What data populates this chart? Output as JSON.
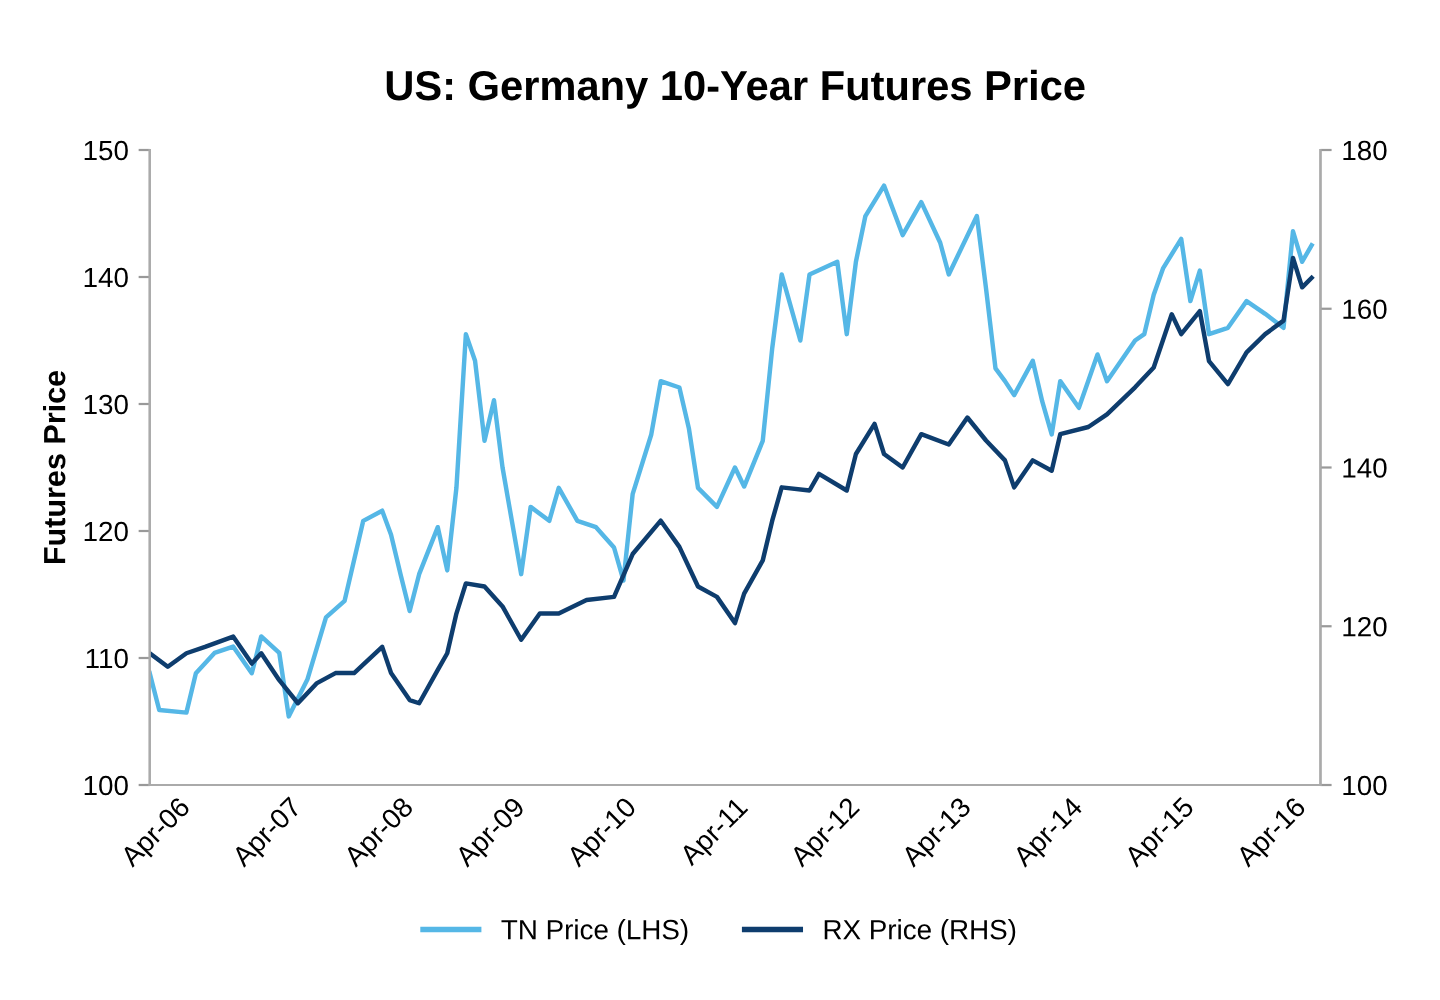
{
  "chart_data": {
    "type": "line",
    "title": "US: Germany 10-Year Futures Price",
    "ylabel": "Futures Price",
    "xlim": [
      "2006-01-01",
      "2016-06-30"
    ],
    "xticks": [
      {
        "value": "2006-04",
        "label": "Apr-06"
      },
      {
        "value": "2007-04",
        "label": "Apr-07"
      },
      {
        "value": "2008-04",
        "label": "Apr-08"
      },
      {
        "value": "2009-04",
        "label": "Apr-09"
      },
      {
        "value": "2010-04",
        "label": "Apr-10"
      },
      {
        "value": "2011-04",
        "label": "Apr-11"
      },
      {
        "value": "2012-04",
        "label": "Apr-12"
      },
      {
        "value": "2013-04",
        "label": "Apr-13"
      },
      {
        "value": "2014-04",
        "label": "Apr-14"
      },
      {
        "value": "2015-04",
        "label": "Apr-15"
      },
      {
        "value": "2016-04",
        "label": "Apr-16"
      }
    ],
    "ylim": [
      100,
      150
    ],
    "yticks": [
      100,
      110,
      120,
      130,
      140,
      150
    ],
    "y2lim": [
      100,
      180
    ],
    "y2ticks": [
      100,
      120,
      140,
      160,
      180
    ],
    "grid": false,
    "legend": "bottom",
    "line_style": "solid",
    "marker": "none",
    "series": [
      {
        "name": "TN Price (LHS)",
        "color": "#55b7e6",
        "axis": "y",
        "x": [
          "2006-01",
          "2006-02",
          "2006-05",
          "2006-06",
          "2006-08",
          "2006-10",
          "2006-12",
          "2007-01",
          "2007-03",
          "2007-04",
          "2007-06",
          "2007-08",
          "2007-10",
          "2007-12",
          "2008-02",
          "2008-03",
          "2008-04",
          "2008-05",
          "2008-06",
          "2008-08",
          "2008-09",
          "2008-10",
          "2008-11",
          "2008-12",
          "2009-01",
          "2009-02",
          "2009-03",
          "2009-05",
          "2009-06",
          "2009-08",
          "2009-09",
          "2009-11",
          "2010-01",
          "2010-03",
          "2010-04",
          "2010-05",
          "2010-07",
          "2010-08",
          "2010-10",
          "2010-11",
          "2010-12",
          "2011-02",
          "2011-04",
          "2011-05",
          "2011-07",
          "2011-08",
          "2011-09",
          "2011-11",
          "2011-12",
          "2012-03",
          "2012-04",
          "2012-05",
          "2012-06",
          "2012-08",
          "2012-10",
          "2012-12",
          "2013-02",
          "2013-03",
          "2013-06",
          "2013-07",
          "2013-08",
          "2013-09",
          "2013-10",
          "2013-12",
          "2014-01",
          "2014-02",
          "2014-03",
          "2014-05",
          "2014-07",
          "2014-08",
          "2014-11",
          "2014-12",
          "2015-01",
          "2015-02",
          "2015-04",
          "2015-05",
          "2015-06",
          "2015-07",
          "2015-09",
          "2015-11",
          "2016-01",
          "2016-03",
          "2016-04",
          "2016-05",
          "2016-06"
        ],
        "values": [
          108.8,
          105.9,
          105.7,
          108.8,
          110.4,
          110.9,
          108.8,
          111.7,
          110.4,
          105.4,
          108.3,
          113.2,
          114.5,
          120.8,
          121.6,
          119.7,
          116.6,
          113.7,
          116.6,
          120.3,
          116.9,
          123.4,
          135.5,
          133.4,
          127.1,
          130.3,
          125.0,
          116.6,
          121.9,
          120.8,
          123.4,
          120.8,
          120.3,
          118.7,
          116.1,
          122.9,
          127.6,
          131.8,
          131.3,
          128.1,
          123.4,
          121.9,
          125.0,
          123.5,
          127.1,
          134.4,
          140.2,
          135.0,
          140.2,
          141.2,
          135.5,
          141.2,
          144.8,
          147.2,
          143.3,
          145.9,
          142.7,
          140.2,
          144.8,
          139.1,
          132.8,
          131.8,
          130.7,
          133.4,
          130.2,
          127.6,
          131.8,
          129.7,
          133.9,
          131.8,
          135.0,
          135.5,
          138.6,
          140.7,
          143.0,
          138.1,
          140.5,
          135.5,
          136.0,
          138.1,
          137.1,
          136.0,
          143.6,
          141.2,
          142.5
        ]
      },
      {
        "name": "RX Price (RHS)",
        "color": "#0e3d6e",
        "axis": "y2",
        "x": [
          "2006-01",
          "2006-03",
          "2006-05",
          "2006-07",
          "2006-10",
          "2006-12",
          "2007-01",
          "2007-03",
          "2007-05",
          "2007-07",
          "2007-09",
          "2007-11",
          "2008-02",
          "2008-03",
          "2008-05",
          "2008-06",
          "2008-08",
          "2008-09",
          "2008-10",
          "2008-11",
          "2009-01",
          "2009-03",
          "2009-05",
          "2009-07",
          "2009-09",
          "2009-12",
          "2010-03",
          "2010-05",
          "2010-08",
          "2010-10",
          "2010-12",
          "2011-02",
          "2011-04",
          "2011-05",
          "2011-07",
          "2011-08",
          "2011-09",
          "2011-12",
          "2012-01",
          "2012-04",
          "2012-05",
          "2012-07",
          "2012-08",
          "2012-10",
          "2012-12",
          "2013-03",
          "2013-05",
          "2013-07",
          "2013-09",
          "2013-10",
          "2013-12",
          "2014-02",
          "2014-03",
          "2014-06",
          "2014-08",
          "2014-11",
          "2015-01",
          "2015-03",
          "2015-04",
          "2015-06",
          "2015-07",
          "2015-09",
          "2015-11",
          "2016-01",
          "2016-03",
          "2016-04",
          "2016-05",
          "2016-06"
        ],
        "values": [
          116.6,
          114.9,
          116.6,
          117.4,
          118.7,
          115.3,
          116.6,
          113.2,
          110.3,
          112.8,
          114.1,
          114.1,
          117.4,
          114.1,
          110.7,
          110.3,
          114.5,
          116.6,
          121.6,
          125.4,
          125.0,
          122.5,
          118.3,
          121.6,
          121.6,
          123.3,
          123.7,
          129.1,
          133.3,
          130.0,
          125.0,
          123.7,
          120.4,
          124.1,
          128.3,
          133.3,
          137.5,
          137.1,
          139.2,
          137.1,
          141.7,
          145.5,
          141.7,
          140.0,
          144.2,
          142.9,
          146.3,
          143.4,
          140.9,
          137.5,
          140.9,
          139.6,
          144.2,
          145.1,
          146.7,
          150.1,
          152.6,
          159.3,
          156.8,
          159.7,
          153.4,
          150.5,
          154.5,
          156.8,
          158.5,
          166.4,
          162.7,
          163.9
        ]
      }
    ]
  }
}
